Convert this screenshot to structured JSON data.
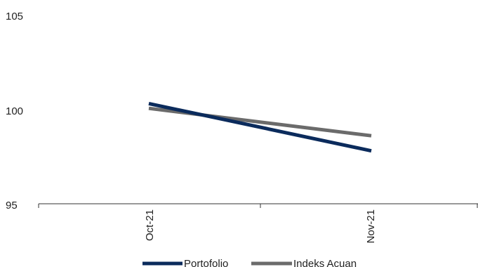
{
  "chart_data": {
    "type": "line",
    "categories": [
      "Oct-21",
      "Nov-21"
    ],
    "series": [
      {
        "name": "Portofolio",
        "values": [
          100.3,
          97.8
        ],
        "color": "#0b2b5c"
      },
      {
        "name": "Indeks Acuan",
        "values": [
          100.05,
          98.6
        ],
        "color": "#6b6b6b"
      }
    ],
    "yticks": [
      "95",
      "100",
      "105"
    ],
    "ylim": [
      95,
      105
    ],
    "grid": false,
    "legend_position": "bottom-center"
  }
}
